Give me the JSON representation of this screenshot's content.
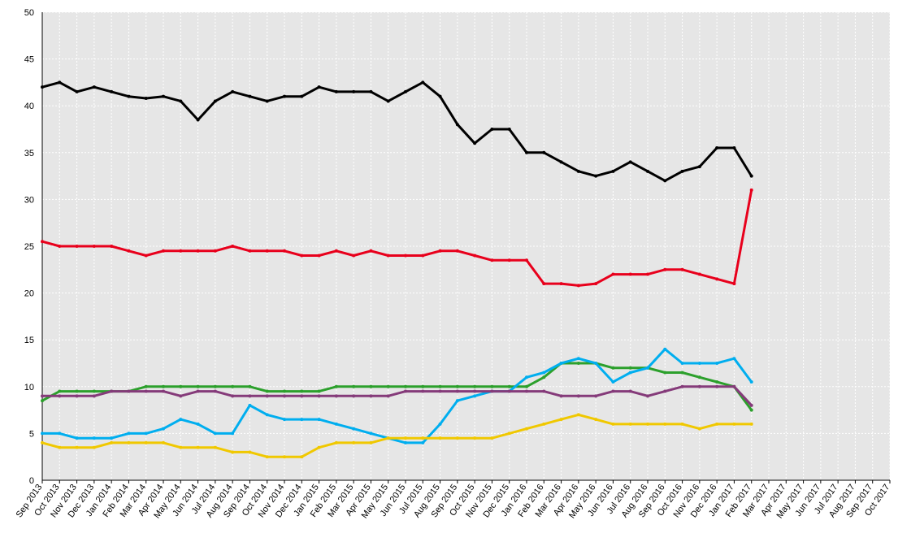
{
  "chart_data": {
    "type": "line",
    "categories": [
      "Sep 2013",
      "Oct 2013",
      "Nov 2013",
      "Dec 2013",
      "Jan 2014",
      "Feb 2014",
      "Mar 2014",
      "Apr 2014",
      "May 2014",
      "Jun 2014",
      "Jul 2014",
      "Aug 2014",
      "Sep 2014",
      "Oct 2014",
      "Nov 2014",
      "Dec 2014",
      "Jan 2015",
      "Feb 2015",
      "Mar 2015",
      "Apr 2015",
      "May 2015",
      "Jun 2015",
      "Jul 2015",
      "Aug 2015",
      "Sep 2015",
      "Oct 2015",
      "Nov 2015",
      "Dec 2015",
      "Jan 2016",
      "Feb 2016",
      "Mar 2016",
      "Apr 2016",
      "May 2016",
      "Jun 2016",
      "Jul 2016",
      "Aug 2016",
      "Sep 2016",
      "Oct 2016",
      "Nov 2016",
      "Dec 2016",
      "Jan 2017",
      "Feb 2017",
      "Mar 2017",
      "Apr 2017",
      "May 2017",
      "Jun 2017",
      "Jul 2017",
      "Aug 2017",
      "Sep 2017",
      "Oct 2017"
    ],
    "series": [
      {
        "color": "#000000",
        "values": [
          42,
          42.5,
          41.5,
          42,
          41.5,
          41,
          40.8,
          41,
          40.5,
          38.5,
          40.5,
          41.5,
          41,
          40.5,
          41,
          41,
          42,
          41.5,
          41.5,
          41.5,
          40.5,
          41.5,
          42.5,
          41,
          38,
          36,
          37.5,
          37.5,
          35,
          35,
          34,
          33,
          32.5,
          33,
          34,
          33,
          32,
          33,
          33.5,
          35.5,
          35.5,
          32.5,
          null,
          null,
          null,
          null,
          null,
          null,
          null,
          null
        ]
      },
      {
        "color": "#e8001c",
        "values": [
          25.5,
          25,
          25,
          25,
          25,
          24.5,
          24,
          24.5,
          24.5,
          24.5,
          24.5,
          25,
          24.5,
          24.5,
          24.5,
          24,
          24,
          24.5,
          24,
          24.5,
          24,
          24,
          24,
          24.5,
          24.5,
          24,
          23.5,
          23.5,
          23.5,
          21,
          21,
          20.8,
          21,
          22,
          22,
          22,
          22.5,
          22.5,
          22,
          21.5,
          21,
          31,
          null,
          null,
          null,
          null,
          null,
          null,
          null,
          null
        ]
      },
      {
        "color": "#2ca02c",
        "values": [
          8.5,
          9.5,
          9.5,
          9.5,
          9.5,
          9.5,
          10,
          10,
          10,
          10,
          10,
          10,
          10,
          9.5,
          9.5,
          9.5,
          9.5,
          10,
          10,
          10,
          10,
          10,
          10,
          10,
          10,
          10,
          10,
          10,
          10,
          11,
          12.5,
          12.5,
          12.5,
          12,
          12,
          12,
          11.5,
          11.5,
          11,
          10.5,
          10,
          7.5,
          null,
          null,
          null,
          null,
          null,
          null,
          null,
          null
        ]
      },
      {
        "color": "#00aeef",
        "values": [
          5,
          5,
          4.5,
          4.5,
          4.5,
          5,
          5,
          5.5,
          6.5,
          6,
          5,
          5,
          8,
          7,
          6.5,
          6.5,
          6.5,
          6,
          5.5,
          5,
          4.5,
          4,
          4,
          6,
          8.5,
          9,
          9.5,
          9.5,
          11,
          11.5,
          12.5,
          13,
          12.5,
          10.5,
          11.5,
          12,
          14,
          12.5,
          12.5,
          12.5,
          13,
          10.5,
          null,
          null,
          null,
          null,
          null,
          null,
          null,
          null
        ]
      },
      {
        "color": "#853b7a",
        "values": [
          9,
          9,
          9,
          9,
          9.5,
          9.5,
          9.5,
          9.5,
          9,
          9.5,
          9.5,
          9,
          9,
          9,
          9,
          9,
          9,
          9,
          9,
          9,
          9,
          9.5,
          9.5,
          9.5,
          9.5,
          9.5,
          9.5,
          9.5,
          9.5,
          9.5,
          9,
          9,
          9,
          9.5,
          9.5,
          9,
          9.5,
          10,
          10,
          10,
          10,
          8,
          null,
          null,
          null,
          null,
          null,
          null,
          null,
          null
        ]
      },
      {
        "color": "#f0c800",
        "values": [
          4,
          3.5,
          3.5,
          3.5,
          4,
          4,
          4,
          4,
          3.5,
          3.5,
          3.5,
          3,
          3,
          2.5,
          2.5,
          2.5,
          3.5,
          4,
          4,
          4,
          4.5,
          4.5,
          4.5,
          4.5,
          4.5,
          4.5,
          4.5,
          5,
          5.5,
          6,
          6.5,
          7,
          6.5,
          6,
          6,
          6,
          6,
          6,
          5.5,
          6,
          6,
          6,
          null,
          null,
          null,
          null,
          null,
          null,
          null,
          null
        ]
      }
    ],
    "ylim": [
      0,
      50
    ],
    "yticks": [
      0,
      5,
      10,
      15,
      20,
      25,
      30,
      35,
      40,
      45,
      50
    ],
    "grid": true
  }
}
